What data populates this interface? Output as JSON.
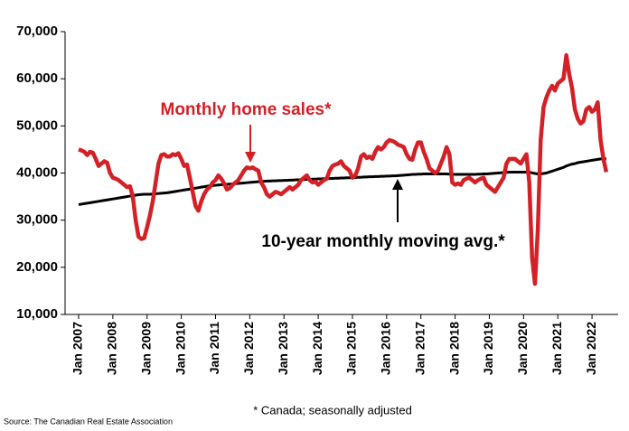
{
  "chart_data": {
    "type": "line",
    "source": "Source: The Canadian Real Estate Association",
    "footnote": "* Canada; seasonally adjusted",
    "categories": [
      "Jan 2007",
      null,
      null,
      null,
      null,
      null,
      null,
      null,
      null,
      null,
      null,
      null,
      "Jan 2008",
      null,
      null,
      null,
      null,
      null,
      null,
      null,
      null,
      null,
      null,
      null,
      "Jan 2009",
      null,
      null,
      null,
      null,
      null,
      null,
      null,
      null,
      null,
      null,
      null,
      "Jan 2010",
      null,
      null,
      null,
      null,
      null,
      null,
      null,
      null,
      null,
      null,
      null,
      "Jan 2011",
      null,
      null,
      null,
      null,
      null,
      null,
      null,
      null,
      null,
      null,
      null,
      "Jan 2012",
      null,
      null,
      null,
      null,
      null,
      null,
      null,
      null,
      null,
      null,
      null,
      "Jan 2013",
      null,
      null,
      null,
      null,
      null,
      null,
      null,
      null,
      null,
      null,
      null,
      "Jan 2014",
      null,
      null,
      null,
      null,
      null,
      null,
      null,
      null,
      null,
      null,
      null,
      "Jan 2015",
      null,
      null,
      null,
      null,
      null,
      null,
      null,
      null,
      null,
      null,
      null,
      "Jan 2016",
      null,
      null,
      null,
      null,
      null,
      null,
      null,
      null,
      null,
      null,
      null,
      "Jan 2017",
      null,
      null,
      null,
      null,
      null,
      null,
      null,
      null,
      null,
      null,
      null,
      "Jan 2018",
      null,
      null,
      null,
      null,
      null,
      null,
      null,
      null,
      null,
      null,
      null,
      "Jan 2019",
      null,
      null,
      null,
      null,
      null,
      null,
      null,
      null,
      null,
      null,
      null,
      "Jan 2020",
      null,
      null,
      null,
      null,
      null,
      null,
      null,
      null,
      null,
      null,
      null,
      "Jan 2021",
      null,
      null,
      null,
      null,
      null,
      null,
      null,
      null,
      null,
      null,
      null,
      "Jan 2022",
      null,
      null,
      null,
      null,
      null
    ],
    "series": [
      {
        "name": "Monthly home sales*",
        "color": "#d42027",
        "values": [
          45000,
          44800,
          44500,
          43800,
          44500,
          44300,
          43000,
          41500,
          42000,
          42500,
          42200,
          40000,
          39000,
          38800,
          38500,
          38000,
          37500,
          37000,
          37200,
          35000,
          30000,
          26500,
          26000,
          26200,
          28500,
          31000,
          34000,
          38000,
          42000,
          43800,
          44000,
          43500,
          43500,
          44000,
          43800,
          44200,
          43000,
          41500,
          41800,
          39000,
          36000,
          33000,
          32000,
          34000,
          35500,
          36500,
          37000,
          38000,
          38500,
          39500,
          38800,
          37800,
          36500,
          36800,
          37500,
          38000,
          38500,
          39500,
          40500,
          41200,
          41000,
          41200,
          40800,
          40500,
          38000,
          37000,
          35500,
          35000,
          35500,
          36000,
          35800,
          35500,
          36000,
          36500,
          37000,
          36500,
          37000,
          37500,
          38500,
          39000,
          39500,
          38500,
          38000,
          38200,
          37500,
          38000,
          38500,
          38800,
          40500,
          41500,
          41800,
          42000,
          42500,
          41500,
          41000,
          40500,
          39000,
          39500,
          41000,
          43500,
          44000,
          43200,
          43500,
          43000,
          44500,
          45500,
          45000,
          45500,
          46500,
          47000,
          46800,
          46500,
          46000,
          45800,
          45500,
          44000,
          43000,
          42800,
          45000,
          46500,
          46500,
          44500,
          43000,
          41000,
          40500,
          40000,
          40500,
          42000,
          43500,
          45500,
          44000,
          38000,
          37500,
          37800,
          37500,
          38500,
          38800,
          39000,
          38500,
          38000,
          38500,
          38800,
          39000,
          37500,
          37000,
          36500,
          36000,
          37000,
          38000,
          39000,
          42000,
          43000,
          43000,
          43000,
          42500,
          42000,
          43000,
          44000,
          38000,
          22000,
          16500,
          28000,
          47000,
          54000,
          56000,
          57500,
          58500,
          57500,
          59000,
          59500,
          60000,
          65000,
          61000,
          58000,
          53500,
          51500,
          50500,
          51000,
          53500,
          54000,
          53000,
          53500,
          55000,
          47000,
          43000,
          40200
        ]
      },
      {
        "name": "10-year monthly moving avg.*",
        "color": "#000000",
        "values": [
          33300,
          33400,
          33500,
          33600,
          33700,
          33800,
          33900,
          34000,
          34100,
          34200,
          34300,
          34400,
          34500,
          34600,
          34700,
          34800,
          34900,
          35000,
          35100,
          35200,
          35300,
          35400,
          35450,
          35500,
          35500,
          35500,
          35550,
          35600,
          35650,
          35700,
          35750,
          35800,
          35900,
          36000,
          36100,
          36200,
          36300,
          36400,
          36500,
          36600,
          36700,
          36800,
          36900,
          37000,
          37100,
          37200,
          37300,
          37350,
          37400,
          37450,
          37500,
          37550,
          37600,
          37650,
          37700,
          37750,
          37800,
          37850,
          37900,
          37950,
          38000,
          38050,
          38100,
          38150,
          38200,
          38250,
          38300,
          38300,
          38350,
          38350,
          38400,
          38400,
          38450,
          38450,
          38500,
          38500,
          38550,
          38550,
          38600,
          38600,
          38650,
          38650,
          38700,
          38700,
          38750,
          38750,
          38800,
          38800,
          38850,
          38850,
          38900,
          38900,
          38950,
          38950,
          39000,
          39000,
          39050,
          39050,
          39100,
          39100,
          39150,
          39150,
          39200,
          39200,
          39250,
          39250,
          39300,
          39300,
          39350,
          39350,
          39400,
          39400,
          39450,
          39500,
          39550,
          39600,
          39650,
          39700,
          39700,
          39750,
          39750,
          39800,
          39800,
          39800,
          39800,
          39800,
          39800,
          39800,
          39800,
          39800,
          39750,
          39750,
          39700,
          39700,
          39700,
          39700,
          39700,
          39700,
          39700,
          39700,
          39750,
          39750,
          39800,
          39800,
          39850,
          39900,
          39950,
          40000,
          40050,
          40100,
          40150,
          40200,
          40200,
          40200,
          40200,
          40200,
          40200,
          40200,
          40150,
          40050,
          39900,
          39800,
          39800,
          39900,
          40000,
          40200,
          40400,
          40600,
          40800,
          41000,
          41200,
          41500,
          41700,
          41900,
          42000,
          42200,
          42300,
          42400,
          42500,
          42600,
          42700,
          42800,
          42900,
          43000,
          43000,
          43000
        ]
      }
    ],
    "ylim": [
      10000,
      70000
    ],
    "yticks": [
      {
        "value": 10000,
        "label": "10,000"
      },
      {
        "value": 20000,
        "label": "20,000"
      },
      {
        "value": 30000,
        "label": "30,000"
      },
      {
        "value": 40000,
        "label": "40,000"
      },
      {
        "value": 50000,
        "label": "50,000"
      },
      {
        "value": 60000,
        "label": "60,000"
      },
      {
        "value": 70000,
        "label": "70,000"
      }
    ],
    "grid": false
  }
}
